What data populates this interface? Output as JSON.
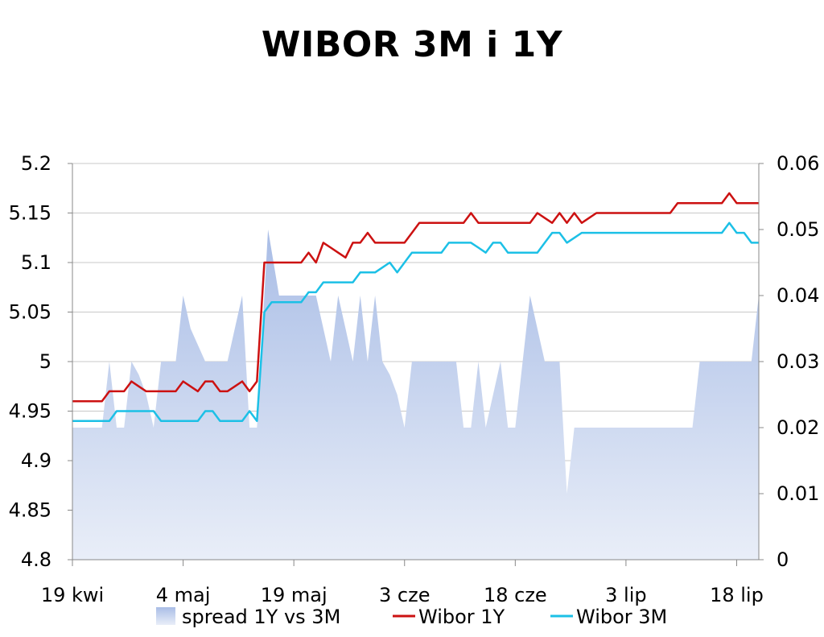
{
  "chart_data": {
    "type": "line",
    "title": "WIBOR 3M i 1Y",
    "x_tick_labels": [
      "19 kwi",
      "4 maj",
      "19 maj",
      "3 cze",
      "18 cze",
      "3 lip",
      "18 lip"
    ],
    "x_tick_days": [
      0,
      15,
      30,
      45,
      60,
      75,
      90
    ],
    "x_range_days": [
      0,
      93
    ],
    "y_left": {
      "range": [
        4.8,
        5.2
      ],
      "ticks": [
        "4.8",
        "4.85",
        "4.9",
        "4.95",
        "5",
        "5.05",
        "5.1",
        "5.15",
        "5.2"
      ]
    },
    "y_right": {
      "range": [
        0,
        0.06
      ],
      "ticks": [
        "0",
        "0.01",
        "0.02",
        "0.03",
        "0.04",
        "0.05",
        "0.06"
      ]
    },
    "grid": true,
    "legend": "bottom",
    "colors": {
      "spread": "#b8c9e8",
      "wibor_1y": "#cc1111",
      "wibor_3m": "#1cc0e6",
      "grid": "#c8c8c8",
      "axis": "#888888"
    },
    "series": [
      {
        "name": "spread 1Y vs 3M",
        "axis": "right",
        "kind": "area",
        "x": [
          0,
          2,
          4,
          5,
          6,
          7,
          8,
          9,
          10,
          11,
          12,
          14,
          15,
          16,
          18,
          20,
          21,
          22,
          23,
          24,
          25,
          26,
          26.5,
          28,
          29,
          30,
          31,
          33,
          35,
          36,
          37,
          38,
          39,
          40,
          41,
          42,
          43,
          44,
          45,
          46,
          47,
          48,
          49,
          50,
          51,
          52,
          53,
          54,
          55,
          56,
          57,
          58,
          59,
          60,
          61,
          62,
          63,
          64,
          65,
          66,
          67,
          68,
          69,
          70,
          71,
          72,
          73,
          74,
          75,
          76,
          77,
          78,
          79,
          80,
          81,
          82,
          83,
          84,
          85,
          86,
          87,
          88,
          89,
          90,
          91,
          92,
          93
        ],
        "values": [
          0.02,
          0.02,
          0.02,
          0.03,
          0.02,
          0.02,
          0.03,
          0.028,
          0.025,
          0.02,
          0.03,
          0.03,
          0.04,
          0.035,
          0.03,
          0.03,
          0.03,
          0.035,
          0.04,
          0.02,
          0.02,
          0.04,
          0.05,
          0.04,
          0.04,
          0.04,
          0.04,
          0.04,
          0.03,
          0.04,
          0.035,
          0.03,
          0.04,
          0.03,
          0.04,
          0.03,
          0.028,
          0.025,
          0.02,
          0.03,
          0.03,
          0.03,
          0.03,
          0.03,
          0.03,
          0.03,
          0.02,
          0.02,
          0.03,
          0.02,
          0.025,
          0.03,
          0.02,
          0.02,
          0.03,
          0.04,
          0.035,
          0.03,
          0.03,
          0.03,
          0.01,
          0.02,
          0.02,
          0.02,
          0.02,
          0.02,
          0.02,
          0.02,
          0.02,
          0.02,
          0.02,
          0.02,
          0.02,
          0.02,
          0.02,
          0.02,
          0.02,
          0.02,
          0.03,
          0.03,
          0.03,
          0.03,
          0.03,
          0.03,
          0.03,
          0.03,
          0.04
        ]
      },
      {
        "name": "Wibor 1Y",
        "axis": "left",
        "kind": "line",
        "x": [
          0,
          1,
          2,
          3,
          4,
          5,
          6,
          7,
          8,
          9,
          10,
          11,
          12,
          13,
          14,
          15,
          16,
          17,
          18,
          19,
          20,
          21,
          22,
          23,
          24,
          25,
          26,
          27,
          28,
          29,
          30,
          31,
          32,
          33,
          34,
          35,
          36,
          37,
          38,
          39,
          40,
          41,
          42,
          43,
          44,
          45,
          46,
          47,
          48,
          49,
          50,
          51,
          52,
          53,
          54,
          55,
          56,
          57,
          58,
          59,
          60,
          61,
          62,
          63,
          64,
          65,
          66,
          67,
          68,
          69,
          70,
          71,
          72,
          73,
          74,
          75,
          76,
          77,
          78,
          79,
          80,
          81,
          82,
          83,
          84,
          85,
          86,
          87,
          88,
          89,
          90,
          91,
          92,
          93
        ],
        "values": [
          4.96,
          4.96,
          4.96,
          4.96,
          4.96,
          4.97,
          4.97,
          4.97,
          4.98,
          4.975,
          4.97,
          4.97,
          4.97,
          4.97,
          4.97,
          4.98,
          4.975,
          4.97,
          4.98,
          4.98,
          4.97,
          4.97,
          4.975,
          4.98,
          4.97,
          4.98,
          5.1,
          5.1,
          5.1,
          5.1,
          5.1,
          5.1,
          5.11,
          5.1,
          5.12,
          5.115,
          5.11,
          5.105,
          5.12,
          5.12,
          5.13,
          5.12,
          5.12,
          5.12,
          5.12,
          5.12,
          5.13,
          5.14,
          5.14,
          5.14,
          5.14,
          5.14,
          5.14,
          5.14,
          5.15,
          5.14,
          5.14,
          5.14,
          5.14,
          5.14,
          5.14,
          5.14,
          5.14,
          5.15,
          5.145,
          5.14,
          5.15,
          5.14,
          5.15,
          5.14,
          5.145,
          5.15,
          5.15,
          5.15,
          5.15,
          5.15,
          5.15,
          5.15,
          5.15,
          5.15,
          5.15,
          5.15,
          5.16,
          5.16,
          5.16,
          5.16,
          5.16,
          5.16,
          5.16,
          5.17,
          5.16,
          5.16,
          5.16,
          5.16
        ]
      },
      {
        "name": "Wibor 3M",
        "axis": "left",
        "kind": "line",
        "x": [
          0,
          1,
          2,
          3,
          4,
          5,
          6,
          7,
          8,
          9,
          10,
          11,
          12,
          13,
          14,
          15,
          16,
          17,
          18,
          19,
          20,
          21,
          22,
          23,
          24,
          25,
          26,
          27,
          28,
          29,
          30,
          31,
          32,
          33,
          34,
          35,
          36,
          37,
          38,
          39,
          40,
          41,
          42,
          43,
          44,
          45,
          46,
          47,
          48,
          49,
          50,
          51,
          52,
          53,
          54,
          55,
          56,
          57,
          58,
          59,
          60,
          61,
          62,
          63,
          64,
          65,
          66,
          67,
          68,
          69,
          70,
          71,
          72,
          73,
          74,
          75,
          76,
          77,
          78,
          79,
          80,
          81,
          82,
          83,
          84,
          85,
          86,
          87,
          88,
          89,
          90,
          91,
          92,
          93
        ],
        "values": [
          4.94,
          4.94,
          4.94,
          4.94,
          4.94,
          4.94,
          4.95,
          4.95,
          4.95,
          4.95,
          4.95,
          4.95,
          4.94,
          4.94,
          4.94,
          4.94,
          4.94,
          4.94,
          4.95,
          4.95,
          4.94,
          4.94,
          4.94,
          4.94,
          4.95,
          4.94,
          5.05,
          5.06,
          5.06,
          5.06,
          5.06,
          5.06,
          5.07,
          5.07,
          5.08,
          5.08,
          5.08,
          5.08,
          5.08,
          5.09,
          5.09,
          5.09,
          5.095,
          5.1,
          5.09,
          5.1,
          5.11,
          5.11,
          5.11,
          5.11,
          5.11,
          5.12,
          5.12,
          5.12,
          5.12,
          5.115,
          5.11,
          5.12,
          5.12,
          5.11,
          5.11,
          5.11,
          5.11,
          5.11,
          5.12,
          5.13,
          5.13,
          5.12,
          5.125,
          5.13,
          5.13,
          5.13,
          5.13,
          5.13,
          5.13,
          5.13,
          5.13,
          5.13,
          5.13,
          5.13,
          5.13,
          5.13,
          5.13,
          5.13,
          5.13,
          5.13,
          5.13,
          5.13,
          5.13,
          5.14,
          5.13,
          5.13,
          5.12,
          5.12
        ]
      }
    ]
  }
}
